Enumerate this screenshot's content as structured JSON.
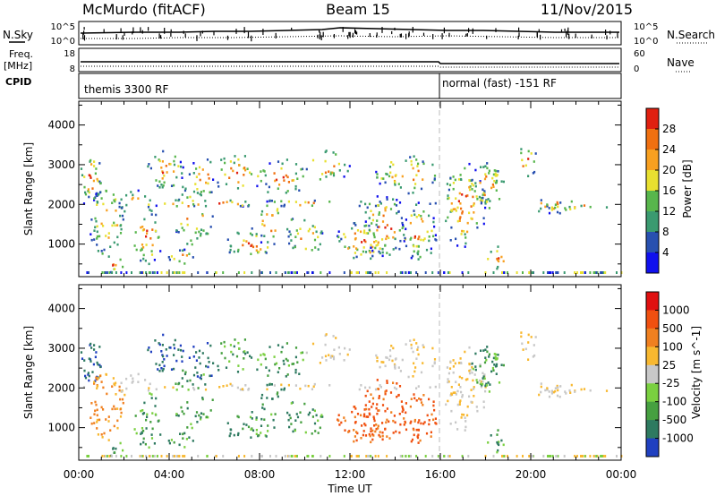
{
  "header": {
    "station": "McMurdo (fitACF)",
    "beam": "Beam 15",
    "date": "11/Nov/2015"
  },
  "status_panels": {
    "nsky": {
      "label": "N.Sky",
      "ticks": [
        "10^5",
        "10^0"
      ]
    },
    "nsearch": {
      "label": "N.Search",
      "ticks": [
        "10^5",
        "10^0"
      ]
    },
    "freq": {
      "label_line1": "Freq.",
      "label_line2": "[MHz]",
      "ticks": [
        "18",
        "8"
      ]
    },
    "nave": {
      "label": "Nave",
      "ticks": [
        "60",
        "0"
      ]
    },
    "cpid": {
      "label": "CPID",
      "modes": [
        "themis 3300 RF",
        "normal (fast) -151 RF"
      ],
      "switch_time": "16:00"
    }
  },
  "chart_data": [
    {
      "type": "heatmap",
      "title": "",
      "ylabel": "Slant Range [km]",
      "xlabel": "",
      "ylim": [
        180,
        4600
      ],
      "yticks": [
        "1000",
        "2000",
        "3000",
        "4000"
      ],
      "x_ticks": [
        "00:00",
        "04:00",
        "08:00",
        "12:00",
        "16:00",
        "20:00",
        "00:00"
      ],
      "colorbar": {
        "label": "Power [dB]",
        "tick_labels": [
          "4",
          "8",
          "12",
          "16",
          "20",
          "24",
          "28"
        ],
        "colors": [
          "#1010ee",
          "#2850b0",
          "#3a9a70",
          "#58b64c",
          "#e8e030",
          "#f8a020",
          "#f07010",
          "#e02010"
        ]
      },
      "dashed_line_at": "16:00"
    },
    {
      "type": "heatmap",
      "title": "",
      "ylabel": "Slant Range [km]",
      "xlabel": "Time UT",
      "ylim": [
        180,
        4600
      ],
      "yticks": [
        "1000",
        "2000",
        "3000",
        "4000"
      ],
      "x_ticks": [
        "00:00",
        "04:00",
        "08:00",
        "12:00",
        "16:00",
        "20:00",
        "00:00"
      ],
      "colorbar": {
        "label": "Velocity [m s^-1]",
        "tick_labels": [
          "1000",
          "500",
          "100",
          "25",
          "-25",
          "-100",
          "-500",
          "-1000"
        ],
        "colors": [
          "#2040c0",
          "#2e7a60",
          "#46a040",
          "#7ad040",
          "#c8c8c8",
          "#f8b830",
          "#f08020",
          "#f05010",
          "#e01010"
        ]
      },
      "dashed_line_at": "16:00"
    }
  ]
}
